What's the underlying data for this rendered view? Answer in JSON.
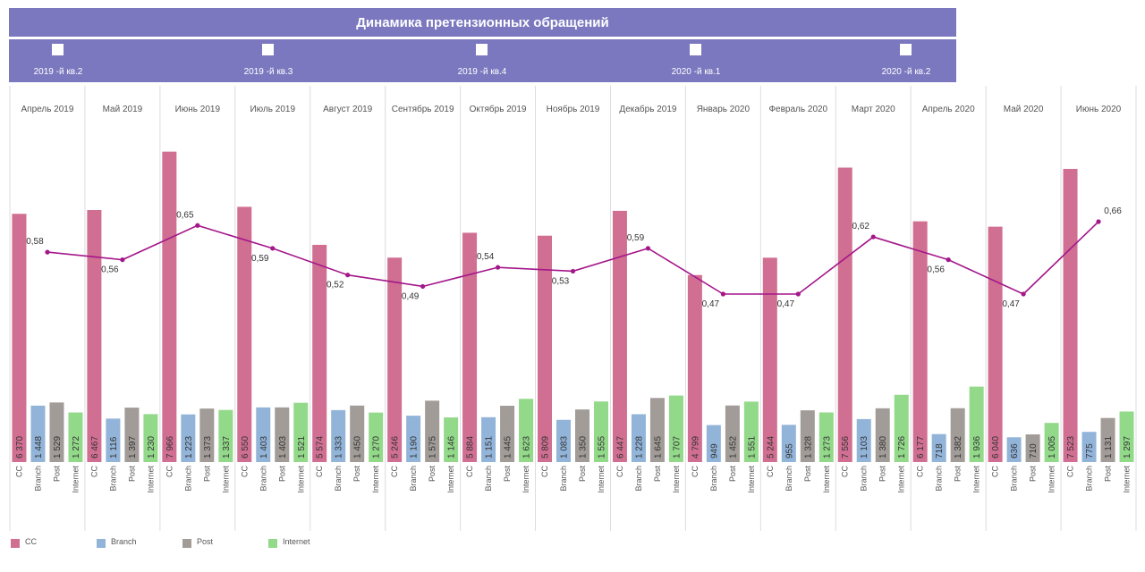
{
  "title": "Динамика претензионных обращений",
  "quarters": [
    "2019 -й кв.2",
    "2019 -й кв.3",
    "2019 -й кв.4",
    "2020 -й кв.1",
    "2020 -й кв.2"
  ],
  "colors": {
    "header": "#7b78bf",
    "CC": "#d06f92",
    "Branch": "#92b4d9",
    "Post": "#a29c98",
    "Internet": "#93d98a",
    "line": "#a4168a"
  },
  "chart_data": {
    "type": "bar",
    "categories": [
      "Апрель 2019",
      "Май 2019",
      "Июнь 2019",
      "Июль 2019",
      "Август 2019",
      "Сентябрь 2019",
      "Октябрь 2019",
      "Ноябрь 2019",
      "Декабрь 2019",
      "Январь 2020",
      "Февраль 2020",
      "Март 2020",
      "Апрель 2020",
      "Май 2020",
      "Июнь 2020"
    ],
    "series": [
      {
        "name": "CC",
        "values": [
          6370,
          6467,
          7966,
          6550,
          5574,
          5246,
          5884,
          5809,
          6447,
          4799,
          5244,
          7556,
          6177,
          6040,
          7523
        ],
        "labels": [
          "6 370",
          "6 467",
          "7 966",
          "6 550",
          "5 574",
          "5 246",
          "5 884",
          "5 809",
          "6 447",
          "4 799",
          "5 244",
          "7 556",
          "6 177",
          "6 040",
          "7 523"
        ]
      },
      {
        "name": "Branch",
        "values": [
          1448,
          1116,
          1223,
          1403,
          1333,
          1190,
          1151,
          1083,
          1228,
          949,
          955,
          1103,
          718,
          636,
          775
        ],
        "labels": [
          "1 448",
          "1 116",
          "1 223",
          "1 403",
          "1 333",
          "1 190",
          "1 151",
          "1 083",
          "1 228",
          "949",
          "955",
          "1 103",
          "718",
          "636",
          "775"
        ]
      },
      {
        "name": "Post",
        "values": [
          1529,
          1397,
          1373,
          1403,
          1450,
          1575,
          1445,
          1350,
          1645,
          1452,
          1328,
          1380,
          1382,
          710,
          1131
        ],
        "labels": [
          "1 529",
          "1 397",
          "1 373",
          "1 403",
          "1 450",
          "1 575",
          "1 445",
          "1 350",
          "1 645",
          "1 452",
          "1 328",
          "1 380",
          "1 382",
          "710",
          "1 131"
        ]
      },
      {
        "name": "Internet",
        "values": [
          1272,
          1230,
          1337,
          1521,
          1270,
          1146,
          1623,
          1555,
          1707,
          1551,
          1273,
          1726,
          1936,
          1005,
          1297
        ],
        "labels": [
          "1 272",
          "1 230",
          "1 337",
          "1 521",
          "1 270",
          "1 146",
          "1 623",
          "1 555",
          "1 707",
          "1 551",
          "1 273",
          "1 726",
          "1 936",
          "1 005",
          "1 297"
        ]
      }
    ],
    "ratio": {
      "values": [
        0.58,
        0.56,
        0.65,
        0.59,
        0.52,
        0.49,
        0.54,
        0.53,
        0.59,
        0.47,
        0.47,
        0.62,
        0.56,
        0.47,
        0.66
      ],
      "labels": [
        "0,58",
        "0,56",
        "0,65",
        "0,59",
        "0,52",
        "0,49",
        "0,54",
        "0,53",
        "0,59",
        "0,47",
        "0,47",
        "0,62",
        "0,56",
        "0,47",
        "0,66"
      ]
    },
    "ylim": [
      0,
      8600
    ],
    "ratio_ylim": [
      0.2,
      0.8
    ],
    "legend": [
      "CC",
      "Branch",
      "Post",
      "Internet"
    ],
    "legend_position": "bottom-left"
  }
}
